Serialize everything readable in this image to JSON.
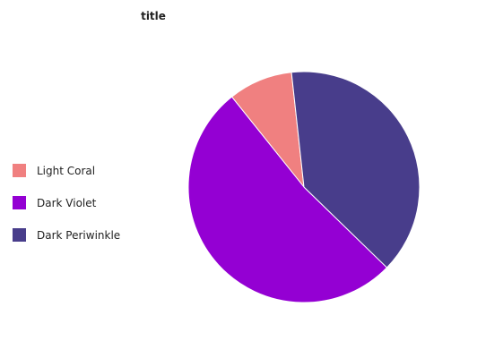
{
  "chart_data": {
    "type": "pie",
    "title": "title",
    "legend_position": "left",
    "series": [
      {
        "name": "Light Coral",
        "value": 9,
        "color": "#F08080"
      },
      {
        "name": "Dark Violet",
        "value": 52,
        "color": "#9400D3"
      },
      {
        "name": "Dark Periwinkle",
        "value": 39,
        "color": "#483D8B"
      }
    ]
  }
}
